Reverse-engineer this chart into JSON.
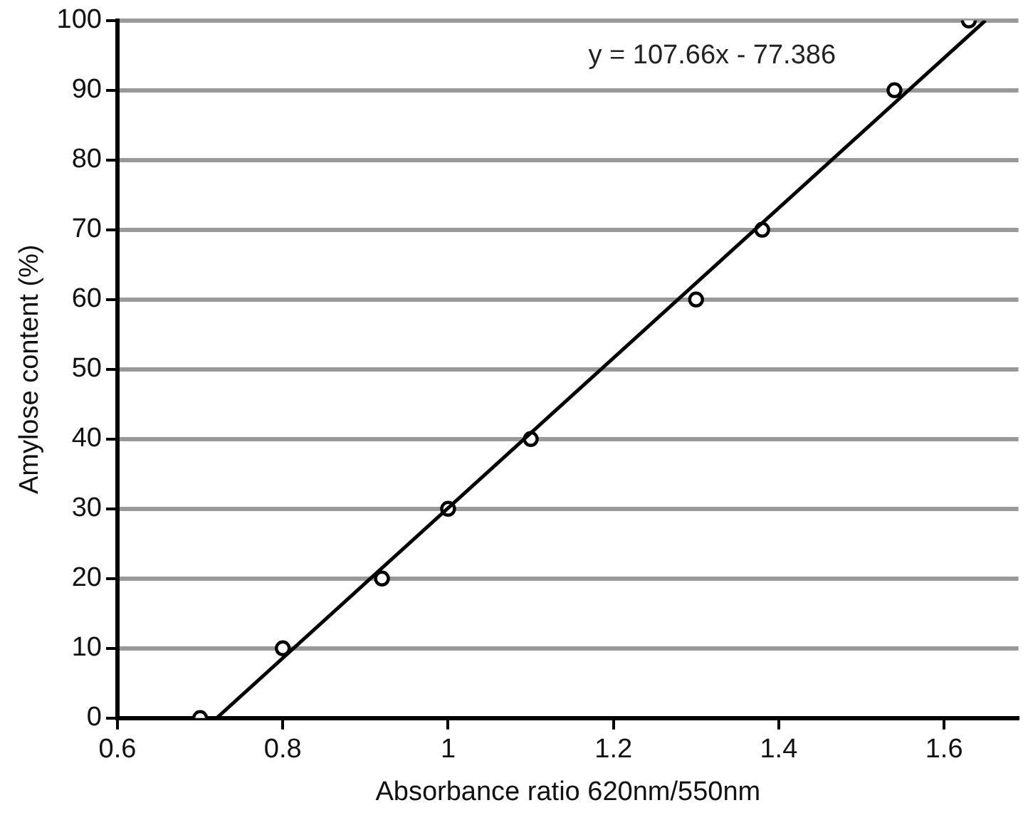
{
  "chart_data": {
    "type": "scatter",
    "xlabel": "Absorbance ratio 620nm/550nm",
    "ylabel": "Amylose content (%)",
    "annotations": [
      "y = 107.66x - 77.386"
    ],
    "series": [
      {
        "color": "#000000",
        "x": [
          0.7,
          0.8,
          0.92,
          1.0,
          1.1,
          1.3,
          1.38,
          1.54,
          1.63
        ],
        "values": [
          0,
          10,
          20,
          30,
          40,
          60,
          70,
          90,
          100
        ]
      },
      {
        "type": "line",
        "marker": "none",
        "color": "#000000",
        "x": [
          0.72,
          1.65
        ],
        "values": [
          0,
          100
        ]
      }
    ],
    "xlim": [
      0.6,
      1.69
    ],
    "xticks": [
      0.6,
      0.8,
      1,
      1.2,
      1.4,
      1.6
    ],
    "ylim": [
      0,
      100
    ],
    "yticks": [
      0,
      10,
      20,
      30,
      40,
      50,
      60,
      70,
      80,
      90,
      100
    ],
    "grid": "y",
    "legend": false,
    "marker": "circle"
  }
}
